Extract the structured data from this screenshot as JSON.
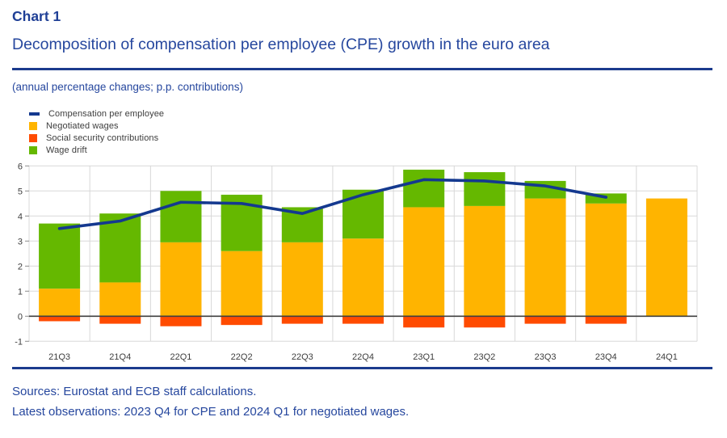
{
  "header": {
    "kicker": "Chart 1",
    "title": "Decomposition of compensation per employee (CPE) growth in the euro area",
    "subtitle": "(annual percentage changes; p.p. contributions)"
  },
  "legend": [
    {
      "label": "Compensation per employee",
      "marker": "line",
      "color": "#14398f",
      "icon": "line-dash-icon"
    },
    {
      "label": "Negotiated wages",
      "marker": "square",
      "color": "#ffb400",
      "icon": "orange-square-icon"
    },
    {
      "label": "Social security contributions",
      "marker": "square",
      "color": "#ff4b00",
      "icon": "red-square-icon"
    },
    {
      "label": "Wage drift",
      "marker": "square",
      "color": "#65b800",
      "icon": "green-square-icon"
    }
  ],
  "chart_data": {
    "type": "bar",
    "stacked": true,
    "title": "Decomposition of compensation per employee (CPE) growth in the euro area",
    "xlabel": "",
    "ylabel": "",
    "units": "annual percentage changes; p.p. contributions",
    "categories": [
      "21Q3",
      "21Q4",
      "22Q1",
      "22Q2",
      "22Q3",
      "22Q4",
      "23Q1",
      "23Q2",
      "23Q3",
      "23Q4",
      "24Q1"
    ],
    "series": [
      {
        "name": "Negotiated wages",
        "type": "bar",
        "color": "#ffb400",
        "values": [
          1.1,
          1.35,
          2.95,
          2.6,
          2.95,
          3.1,
          4.35,
          4.4,
          4.7,
          4.5,
          4.7
        ]
      },
      {
        "name": "Social security contributions",
        "type": "bar",
        "color": "#ff4b00",
        "values": [
          -0.2,
          -0.3,
          -0.4,
          -0.35,
          -0.3,
          -0.3,
          -0.45,
          -0.45,
          -0.3,
          -0.3,
          0
        ]
      },
      {
        "name": "Wage drift",
        "type": "bar",
        "color": "#65b800",
        "values": [
          2.6,
          2.75,
          2.05,
          2.25,
          1.4,
          1.95,
          1.5,
          1.35,
          0.7,
          0.4,
          0
        ]
      },
      {
        "name": "Compensation per employee",
        "type": "line",
        "color": "#14398f",
        "values": [
          3.5,
          3.8,
          4.55,
          4.5,
          4.1,
          4.85,
          5.45,
          5.4,
          5.2,
          4.75,
          null
        ]
      }
    ],
    "ylim": [
      -1,
      6
    ],
    "yticks": [
      -1,
      0,
      1,
      2,
      3,
      4,
      5,
      6
    ],
    "grid": true,
    "legend_position": "top-left"
  },
  "footer": {
    "sources": "Sources: Eurostat and ECB staff calculations.",
    "latest": "Latest observations: 2023 Q4 for CPE and 2024 Q1 for negotiated wages."
  },
  "style_colors": {
    "heading": "#26479e",
    "rule": "#1b3b8d",
    "axis_text": "#3d3d3d",
    "grid": "#d8d8d8",
    "zero_line": "#3f3f3f"
  }
}
